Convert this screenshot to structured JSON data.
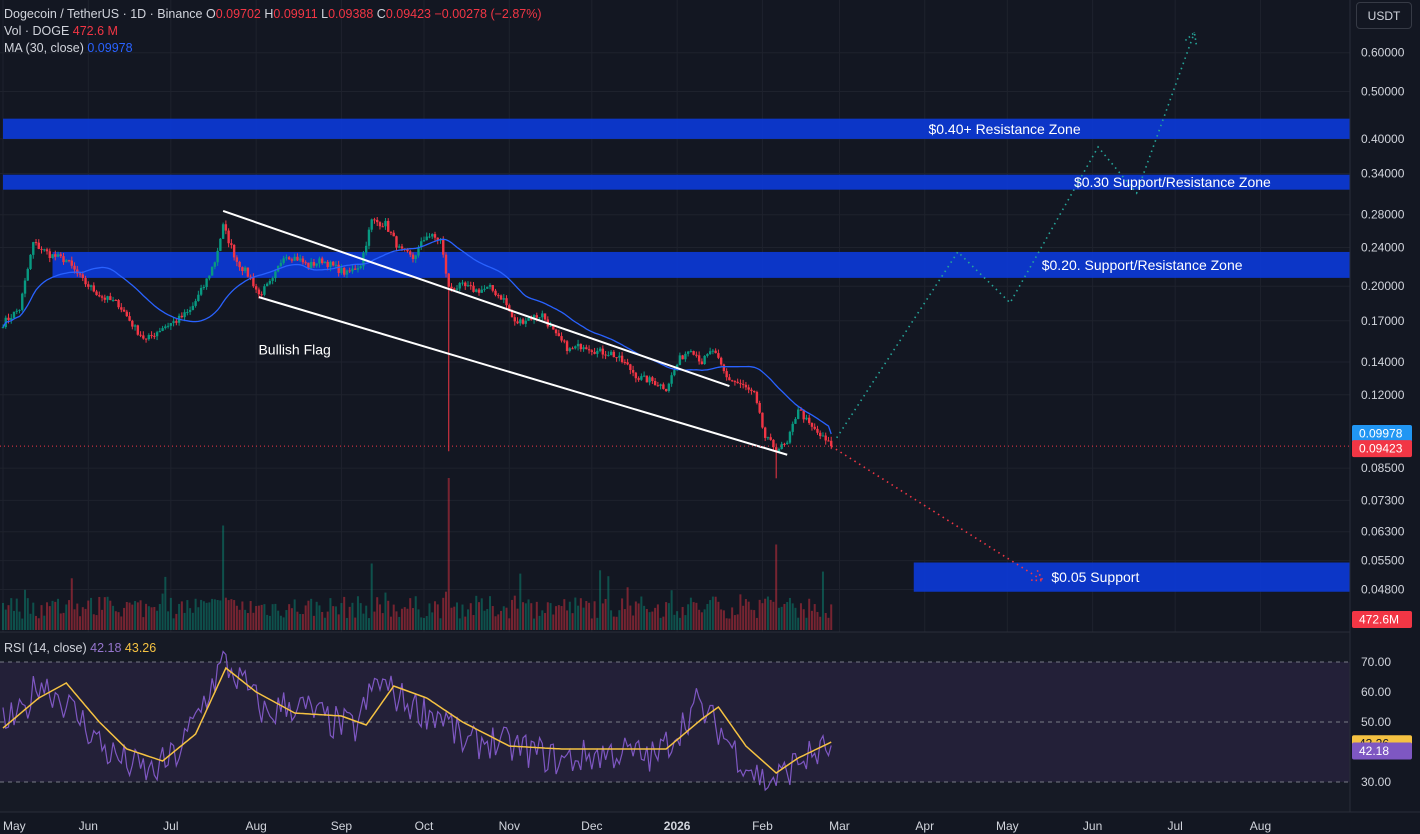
{
  "header": {
    "symbol": "Dogecoin / TetherUS · 1D · Binance",
    "o_label": "O",
    "o_value": "0.09702",
    "h_label": "H",
    "h_value": "0.09911",
    "l_label": "L",
    "l_value": "0.09388",
    "c_label": "C",
    "c_value": "0.09423",
    "change": "−0.00278 (−2.87%)",
    "vol_label": "Vol · DOGE",
    "vol_value": "472.6 M",
    "ma_label": "MA (30, close)",
    "ma_value": "0.09978",
    "rsi_label": "RSI (14, close)",
    "rsi_value": "42.18",
    "rsi_ma_value": "43.26"
  },
  "toolbar": {
    "unit_label": "USDT"
  },
  "colors": {
    "background": "#131722",
    "up": "#089981",
    "down": "#f23645",
    "ma": "#2962ff",
    "zone": "#0c3ad6",
    "rsi": "#7e57c2",
    "rsi_ma": "#f5c242",
    "rsi_band": "#2a2340",
    "projection_up": "#26a69a",
    "projection_down": "#f23645"
  },
  "chart_data": {
    "type": "candlestick",
    "scale": "log",
    "ylim": [
      0.044,
      0.72
    ],
    "yticks": [
      "0.60000",
      "0.50000",
      "0.40000",
      "0.34000",
      "0.28000",
      "0.24000",
      "0.20000",
      "0.17000",
      "0.14000",
      "0.12000",
      "0.08500",
      "0.07300",
      "0.06300",
      "0.05500",
      "0.04800"
    ],
    "xticks": [
      "May",
      "Jun",
      "Jul",
      "Aug",
      "Sep",
      "Oct",
      "Nov",
      "Dec",
      "2026",
      "Feb",
      "Mar",
      "Apr",
      "May",
      "Jun",
      "Jul",
      "Aug"
    ],
    "x_start": "2025-05-01",
    "x_end": "2026-08-31",
    "last_date": "2026-02-26",
    "price_anchors": [
      [
        "2025-05-01",
        0.168
      ],
      [
        "2025-05-07",
        0.18
      ],
      [
        "2025-05-12",
        0.245
      ],
      [
        "2025-05-18",
        0.232
      ],
      [
        "2025-05-24",
        0.226
      ],
      [
        "2025-05-30",
        0.205
      ],
      [
        "2025-06-06",
        0.19
      ],
      [
        "2025-06-12",
        0.184
      ],
      [
        "2025-06-18",
        0.164
      ],
      [
        "2025-06-22",
        0.155
      ],
      [
        "2025-06-28",
        0.165
      ],
      [
        "2025-07-03",
        0.17
      ],
      [
        "2025-07-08",
        0.178
      ],
      [
        "2025-07-13",
        0.2
      ],
      [
        "2025-07-17",
        0.225
      ],
      [
        "2025-07-20",
        0.265
      ],
      [
        "2025-07-25",
        0.225
      ],
      [
        "2025-07-30",
        0.208
      ],
      [
        "2025-08-02",
        0.192
      ],
      [
        "2025-08-07",
        0.205
      ],
      [
        "2025-08-11",
        0.232
      ],
      [
        "2025-08-16",
        0.228
      ],
      [
        "2025-08-20",
        0.22
      ],
      [
        "2025-08-25",
        0.226
      ],
      [
        "2025-08-30",
        0.218
      ],
      [
        "2025-09-03",
        0.212
      ],
      [
        "2025-09-08",
        0.222
      ],
      [
        "2025-09-12",
        0.272
      ],
      [
        "2025-09-17",
        0.268
      ],
      [
        "2025-09-22",
        0.238
      ],
      [
        "2025-09-27",
        0.228
      ],
      [
        "2025-10-02",
        0.255
      ],
      [
        "2025-10-07",
        0.248
      ],
      [
        "2025-10-10",
        0.198
      ],
      [
        "2025-10-15",
        0.2
      ],
      [
        "2025-10-20",
        0.196
      ],
      [
        "2025-10-25",
        0.198
      ],
      [
        "2025-10-30",
        0.188
      ],
      [
        "2025-11-03",
        0.168
      ],
      [
        "2025-11-08",
        0.172
      ],
      [
        "2025-11-13",
        0.175
      ],
      [
        "2025-11-18",
        0.158
      ],
      [
        "2025-11-23",
        0.148
      ],
      [
        "2025-11-28",
        0.152
      ],
      [
        "2025-12-03",
        0.147
      ],
      [
        "2025-12-08",
        0.146
      ],
      [
        "2025-12-13",
        0.139
      ],
      [
        "2025-12-18",
        0.13
      ],
      [
        "2025-12-23",
        0.128
      ],
      [
        "2025-12-28",
        0.124
      ],
      [
        "2026-01-02",
        0.142
      ],
      [
        "2026-01-06",
        0.15
      ],
      [
        "2026-01-10",
        0.14
      ],
      [
        "2026-01-14",
        0.148
      ],
      [
        "2026-01-19",
        0.13
      ],
      [
        "2026-01-24",
        0.126
      ],
      [
        "2026-01-29",
        0.12
      ],
      [
        "2026-02-02",
        0.098
      ],
      [
        "2026-02-06",
        0.093
      ],
      [
        "2026-02-10",
        0.095
      ],
      [
        "2026-02-14",
        0.113
      ],
      [
        "2026-02-18",
        0.104
      ],
      [
        "2026-02-22",
        0.099
      ],
      [
        "2026-02-26",
        0.0942
      ]
    ],
    "spikes": [
      [
        "2025-10-10",
        0.092,
        "low"
      ],
      [
        "2026-02-06",
        0.081,
        "low"
      ]
    ],
    "volume_spikes": [
      [
        "2025-07-20",
        0.55
      ],
      [
        "2025-10-10",
        0.8
      ],
      [
        "2026-02-06",
        0.45
      ],
      [
        "2025-09-12",
        0.35
      ]
    ],
    "rsi": {
      "range": [
        20,
        80
      ],
      "upper": 70,
      "middle": 50,
      "lower": 30,
      "yticks": [
        "70.00",
        "60.00",
        "50.00",
        "40.00",
        "30.00"
      ],
      "anchors": [
        [
          "2025-05-01",
          50
        ],
        [
          "2025-05-08",
          52
        ],
        [
          "2025-05-14",
          64
        ],
        [
          "2025-05-22",
          58
        ],
        [
          "2025-05-30",
          50
        ],
        [
          "2025-06-08",
          40
        ],
        [
          "2025-06-16",
          36
        ],
        [
          "2025-06-24",
          33
        ],
        [
          "2025-07-04",
          40
        ],
        [
          "2025-07-12",
          55
        ],
        [
          "2025-07-20",
          70
        ],
        [
          "2025-07-28",
          62
        ],
        [
          "2025-08-05",
          52
        ],
        [
          "2025-08-12",
          56
        ],
        [
          "2025-08-20",
          54
        ],
        [
          "2025-08-28",
          50
        ],
        [
          "2025-09-06",
          48
        ],
        [
          "2025-09-14",
          64
        ],
        [
          "2025-09-22",
          58
        ],
        [
          "2025-09-30",
          54
        ],
        [
          "2025-10-08",
          52
        ],
        [
          "2025-10-16",
          42
        ],
        [
          "2025-10-24",
          44
        ],
        [
          "2025-11-01",
          42
        ],
        [
          "2025-11-10",
          40
        ],
        [
          "2025-11-20",
          37
        ],
        [
          "2025-12-01",
          39
        ],
        [
          "2025-12-12",
          40
        ],
        [
          "2025-12-24",
          38
        ],
        [
          "2026-01-02",
          48
        ],
        [
          "2026-01-08",
          56
        ],
        [
          "2026-01-16",
          48
        ],
        [
          "2026-01-24",
          38
        ],
        [
          "2026-02-02",
          30
        ],
        [
          "2026-02-08",
          32
        ],
        [
          "2026-02-14",
          37
        ],
        [
          "2026-02-22",
          40
        ],
        [
          "2026-02-26",
          42.2
        ]
      ],
      "ma_anchors": [
        [
          "2025-05-01",
          48
        ],
        [
          "2025-05-14",
          58
        ],
        [
          "2025-05-24",
          63
        ],
        [
          "2025-06-05",
          50
        ],
        [
          "2025-06-15",
          41
        ],
        [
          "2025-06-28",
          37
        ],
        [
          "2025-07-10",
          46
        ],
        [
          "2025-07-21",
          68
        ],
        [
          "2025-08-01",
          60
        ],
        [
          "2025-08-15",
          53
        ],
        [
          "2025-09-01",
          52
        ],
        [
          "2025-09-10",
          49
        ],
        [
          "2025-09-20",
          62
        ],
        [
          "2025-10-02",
          58
        ],
        [
          "2025-10-15",
          50
        ],
        [
          "2025-11-01",
          42
        ],
        [
          "2025-11-20",
          41
        ],
        [
          "2025-12-10",
          41
        ],
        [
          "2025-12-28",
          41
        ],
        [
          "2026-01-10",
          51
        ],
        [
          "2026-01-16",
          55
        ],
        [
          "2026-01-26",
          42
        ],
        [
          "2026-02-06",
          33
        ],
        [
          "2026-02-14",
          38
        ],
        [
          "2026-02-26",
          43.3
        ]
      ]
    },
    "flag": [
      [
        "2025-07-20",
        0.285,
        "2026-01-20",
        0.125
      ],
      [
        "2025-08-02",
        0.19,
        "2026-02-10",
        0.0905
      ]
    ],
    "zones": [
      {
        "label": "$0.40+ Resistance Zone",
        "top": 0.44,
        "bottom": 0.4,
        "from": "2025-05-01",
        "label_date": "2026-04-30"
      },
      {
        "label": "$0.30 Support/Resistance Zone",
        "top": 0.338,
        "bottom": 0.315,
        "from": "2025-05-01",
        "label_date": "2026-06-30"
      },
      {
        "label": "$0.20. Support/Resistance Zone",
        "top": 0.235,
        "bottom": 0.208,
        "from": "2025-05-19",
        "label_date": "2026-06-19"
      },
      {
        "label": "$0.05 Support",
        "top": 0.0545,
        "bottom": 0.0475,
        "from": "2026-03-28",
        "label_date": "2026-06-02"
      }
    ],
    "annotations": [
      {
        "text": "Bullish Flag",
        "date": "2025-08-15",
        "price": 0.145
      }
    ],
    "projection_up": [
      [
        "2026-02-28",
        0.098
      ],
      [
        "2026-04-13",
        0.235
      ],
      [
        "2026-05-02",
        0.185
      ],
      [
        "2026-06-03",
        0.385
      ],
      [
        "2026-06-17",
        0.31
      ],
      [
        "2026-07-08",
        0.66
      ]
    ],
    "projection_down": [
      [
        "2026-02-26",
        0.0942
      ],
      [
        "2026-05-14",
        0.05
      ]
    ],
    "ma_last": 0.09978,
    "close_last": 0.09423,
    "volume_last": "472.6M",
    "volume_label": "472.6M"
  }
}
